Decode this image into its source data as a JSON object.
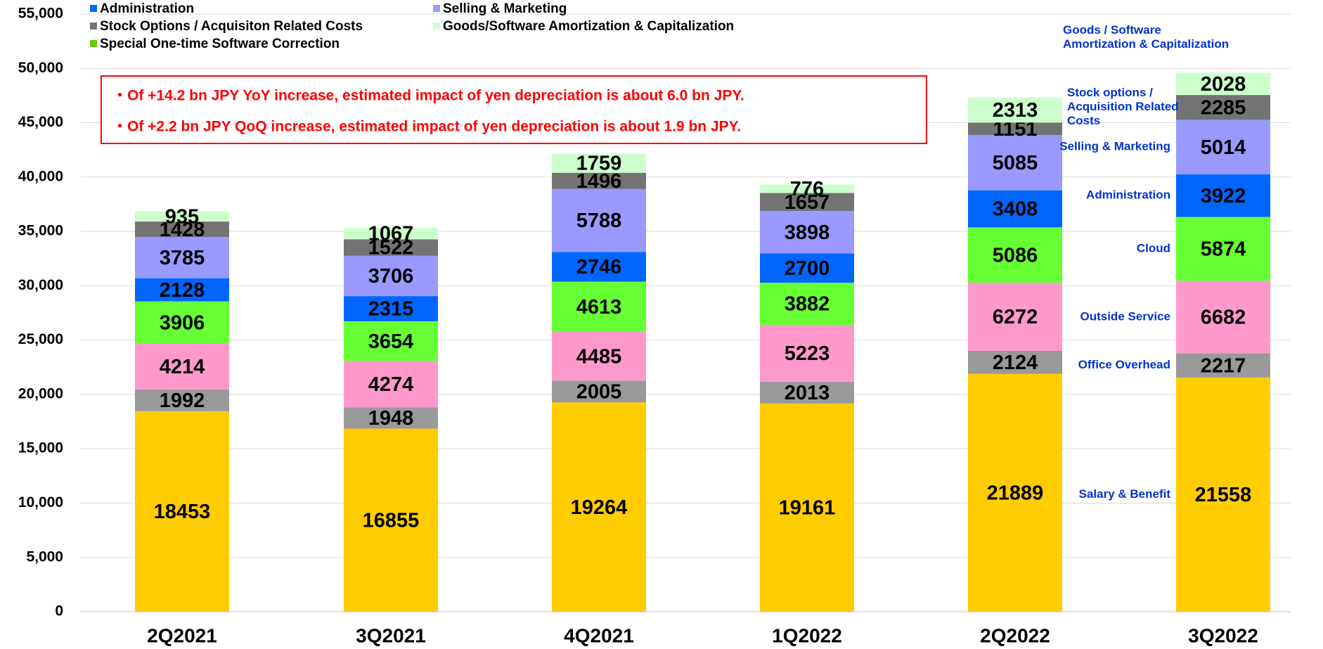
{
  "chart_data": {
    "type": "stacked_bar",
    "categories": [
      "2Q2021",
      "3Q2021",
      "4Q2021",
      "1Q2022",
      "2Q2022",
      "3Q2022"
    ],
    "series": [
      {
        "label": [
          "Salary & Benefit"
        ],
        "color": "#ffcc00",
        "values": [
          18453,
          16855,
          19264,
          19161,
          21889,
          21558
        ]
      },
      {
        "label": [
          "Office  Overhead"
        ],
        "color": "#999999",
        "values": [
          1992,
          1948,
          2005,
          2013,
          2124,
          2217
        ]
      },
      {
        "label": [
          "Outside Service"
        ],
        "color": "#ff99cc",
        "values": [
          4214,
          4274,
          4485,
          5223,
          6272,
          6682
        ]
      },
      {
        "label": [
          "Cloud"
        ],
        "color": "#66ff33",
        "values": [
          3906,
          3654,
          4613,
          3882,
          5086,
          5874
        ]
      },
      {
        "name": "Administration",
        "label": [
          "Administration"
        ],
        "color": "#0066ff",
        "values": [
          2128,
          2315,
          2746,
          2700,
          3408,
          3922
        ]
      },
      {
        "name": "Selling & Marketing",
        "label": [
          "Selling & Marketing"
        ],
        "color": "#9999ff",
        "values": [
          3785,
          3706,
          5788,
          3898,
          5085,
          5014
        ]
      },
      {
        "name": "Stock Options / Acquisiton Related Costs",
        "label": [
          "Stock options /",
          "Acquisition Related",
          "Costs"
        ],
        "color": "#737373",
        "values": [
          1428,
          1522,
          1496,
          1657,
          1151,
          2285
        ]
      },
      {
        "name": "Goods/Software Amortization & Capitalization",
        "label": [
          "Goods / Software",
          "Amortization & Capitalization"
        ],
        "color": "#ccffcc",
        "values": [
          935,
          1067,
          1759,
          776,
          2313,
          2028
        ]
      },
      {
        "name": "Special One-time Software Correction",
        "color": "#66cc00",
        "values": [
          null,
          null,
          null,
          null,
          null,
          null
        ]
      }
    ],
    "ylim": [
      0,
      55000
    ],
    "yticks": [
      0,
      {
        "value": 5000,
        "label": "5,000"
      },
      {
        "value": 10000,
        "label": "10,000"
      },
      {
        "value": 15000,
        "label": "15,000"
      },
      {
        "value": 20000,
        "label": "20,000"
      },
      {
        "value": 25000,
        "label": "25,000"
      },
      {
        "value": 30000,
        "label": "30,000"
      },
      {
        "value": 35000,
        "label": "35,000"
      },
      {
        "value": 40000,
        "label": "40,000"
      },
      {
        "value": 45000,
        "label": "45,000"
      },
      {
        "value": 50000,
        "label": "50,000"
      },
      {
        "value": 55000,
        "label": "55,000"
      }
    ],
    "grid": true,
    "annotations": [
      "・Of +14.2 bn JPY YoY increase, estimated impact of yen depreciation is about 6.0 bn JPY.",
      "・Of  +2.2 bn JPY QoQ increase, estimated impact of yen depreciation is about 1.9 bn JPY."
    ]
  }
}
